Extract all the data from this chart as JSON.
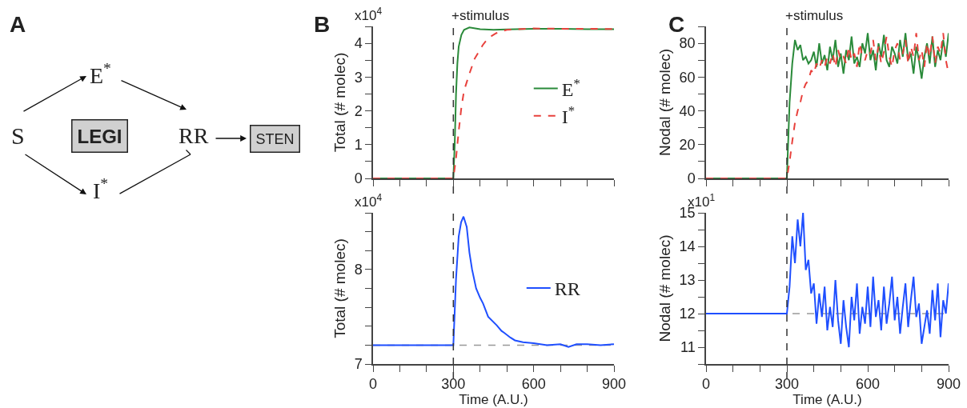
{
  "chart_data": [
    {
      "type": "other",
      "title": "A",
      "annotations": [
        "S",
        "E$^{*}$",
        "I$^{*}$",
        "RR",
        "LEGI",
        "STEN"
      ]
    },
    {
      "type": "line",
      "title": "B",
      "ylabel": "Total (# molec)",
      "annotations": [
        "x10$^{4}$"
      ],
      "xlim": [
        0,
        900
      ],
      "xticks": [
        0,
        {
          "value": 100,
          "label": null
        },
        {
          "value": 200,
          "label": null
        },
        {
          "value": 300,
          "label": null
        },
        {
          "value": 400,
          "label": null
        },
        {
          "value": 500,
          "label": null
        },
        {
          "value": 600,
          "label": null
        },
        {
          "value": 700,
          "label": null
        },
        {
          "value": 800,
          "label": null
        },
        {
          "value": 900,
          "label": null
        }
      ],
      "ylim": [
        0,
        4.5
      ],
      "yticks": [
        0,
        {
          "value": 0.5,
          "label": null
        },
        1,
        {
          "value": 1.5,
          "label": null
        },
        2,
        {
          "value": 2.5,
          "label": null
        },
        3,
        {
          "value": 3.5,
          "label": null
        },
        4,
        {
          "value": 4.5,
          "label": null
        }
      ],
      "tick_labels": "y",
      "legend": "right",
      "ref_lines": [
        {
          "axis": "x",
          "value": 300,
          "label": "+stimulus",
          "color": "#333333",
          "line_style": "dashed"
        }
      ],
      "series": [
        {
          "name": "E$^{*}$",
          "color": "#2a8a3a",
          "line_style": "solid",
          "x": [
            0,
            300,
            305,
            310,
            315,
            320,
            330,
            340,
            360,
            400,
            450,
            500,
            600,
            700,
            800,
            900
          ],
          "values": [
            0,
            0,
            1.0,
            2.5,
            3.4,
            3.9,
            4.25,
            4.4,
            4.47,
            4.42,
            4.4,
            4.41,
            4.43,
            4.43,
            4.42,
            4.42
          ]
        },
        {
          "name": "I$^{*}$",
          "color": "#e8413c",
          "line_style": "dashed",
          "x": [
            0,
            300,
            310,
            320,
            330,
            340,
            360,
            380,
            410,
            430,
            460,
            500,
            600,
            700,
            800,
            900
          ],
          "values": [
            0,
            0,
            0.6,
            1.4,
            2.1,
            2.6,
            3.1,
            3.55,
            3.95,
            4.15,
            4.3,
            4.4,
            4.44,
            4.43,
            4.43,
            4.42
          ]
        }
      ]
    },
    {
      "type": "line",
      "xlabel": "Time (A.U.)",
      "ylabel": "Total (# molec)",
      "annotations": [
        "x10$^{4}$"
      ],
      "xlim": [
        0,
        900
      ],
      "xticks": [
        0,
        {
          "value": 100,
          "label": null
        },
        {
          "value": 200,
          "label": null
        },
        300,
        {
          "value": 400,
          "label": null
        },
        {
          "value": 500,
          "label": null
        },
        600,
        {
          "value": 700,
          "label": null
        },
        {
          "value": 800,
          "label": null
        },
        900
      ],
      "ylim": [
        7,
        8.6
      ],
      "yticks": [
        7,
        {
          "value": 7.2,
          "label": null
        },
        {
          "value": 7.4,
          "label": null
        },
        {
          "value": 7.6,
          "label": null
        },
        {
          "value": 7.8,
          "label": null
        },
        8,
        {
          "value": 8.2,
          "label": null
        },
        {
          "value": 8.4,
          "label": null
        },
        {
          "value": 8.6,
          "label": null
        }
      ],
      "legend": "right",
      "ref_lines": [
        {
          "axis": "x",
          "value": 300,
          "color": "#333333",
          "line_style": "dashed"
        },
        {
          "axis": "y",
          "value": 7.2,
          "color": "#999999",
          "line_style": "dashed"
        }
      ],
      "series": [
        {
          "name": "RR",
          "color": "#1f4fff",
          "line_style": "solid",
          "x": [
            0,
            300,
            310,
            320,
            329,
            338,
            350,
            360,
            370,
            385,
            400,
            411,
            430,
            462,
            480,
            490,
            513,
            530,
            560,
            600,
            650,
            700,
            730,
            760,
            800,
            850,
            900
          ],
          "values": [
            7.2,
            7.2,
            7.9,
            8.35,
            8.5,
            8.56,
            8.45,
            8.18,
            8.0,
            7.8,
            7.7,
            7.64,
            7.5,
            7.41,
            7.35,
            7.33,
            7.28,
            7.25,
            7.23,
            7.22,
            7.2,
            7.21,
            7.18,
            7.21,
            7.21,
            7.2,
            7.21
          ]
        }
      ]
    },
    {
      "type": "line",
      "title": "C",
      "ylabel": "Nodal (# molec)",
      "xlim": [
        0,
        900
      ],
      "xticks": [
        0,
        {
          "value": 100,
          "label": null
        },
        {
          "value": 200,
          "label": null
        },
        {
          "value": 300,
          "label": null
        },
        {
          "value": 400,
          "label": null
        },
        {
          "value": 500,
          "label": null
        },
        {
          "value": 600,
          "label": null
        },
        {
          "value": 700,
          "label": null
        },
        {
          "value": 800,
          "label": null
        },
        {
          "value": 900,
          "label": null
        }
      ],
      "ylim": [
        0,
        90
      ],
      "yticks": [
        0,
        {
          "value": 10,
          "label": null
        },
        20,
        {
          "value": 30,
          "label": null
        },
        40,
        {
          "value": 50,
          "label": null
        },
        60,
        {
          "value": 70,
          "label": null
        },
        80,
        {
          "value": 90,
          "label": null
        }
      ],
      "tick_labels": "y",
      "ref_lines": [
        {
          "axis": "x",
          "value": 300,
          "label": "+stimulus",
          "color": "#333333",
          "line_style": "dashed"
        }
      ],
      "x": [
        0,
        300,
        310,
        320,
        330,
        340,
        350,
        360,
        370,
        380,
        390,
        400,
        410,
        420,
        430,
        440,
        450,
        460,
        470,
        480,
        490,
        500,
        510,
        520,
        530,
        540,
        550,
        560,
        570,
        580,
        590,
        600,
        610,
        620,
        630,
        640,
        650,
        660,
        670,
        680,
        690,
        700,
        710,
        720,
        730,
        740,
        750,
        760,
        770,
        780,
        790,
        800,
        810,
        820,
        830,
        840,
        850,
        860,
        870,
        880,
        890,
        900
      ],
      "series": [
        {
          "color": "#2a8a3a",
          "line_style": "solid",
          "values": [
            0,
            0,
            45,
            68,
            82,
            76,
            79,
            70,
            72,
            68,
            70,
            75,
            66,
            80,
            68,
            73,
            64,
            78,
            70,
            82,
            66,
            74,
            62,
            76,
            70,
            84,
            68,
            72,
            66,
            80,
            74,
            86,
            70,
            76,
            64,
            80,
            72,
            85,
            70,
            66,
            78,
            74,
            68,
            82,
            72,
            86,
            70,
            74,
            62,
            78,
            70,
            59,
            72,
            80,
            68,
            84,
            66,
            76,
            70,
            82,
            72,
            86
          ]
        },
        {
          "color": "#e8413c",
          "line_style": "dashed",
          "values": [
            0,
            0,
            10,
            22,
            33,
            40,
            45,
            52,
            56,
            58,
            64,
            62,
            68,
            65,
            70,
            66,
            72,
            68,
            74,
            66,
            76,
            70,
            72,
            68,
            78,
            70,
            74,
            66,
            80,
            72,
            70,
            76,
            74,
            82,
            70,
            78,
            68,
            75,
            84,
            72,
            66,
            76,
            80,
            70,
            74,
            82,
            68,
            78,
            72,
            86,
            70,
            76,
            66,
            80,
            72,
            84,
            68,
            78,
            74,
            86,
            70,
            62
          ]
        }
      ]
    },
    {
      "type": "line",
      "xlabel": "Time (A.U.)",
      "ylabel": "Nodal (# molec)",
      "annotations": [
        "x10$^{1}$"
      ],
      "xlim": [
        0,
        900
      ],
      "xticks": [
        0,
        {
          "value": 100,
          "label": null
        },
        {
          "value": 200,
          "label": null
        },
        300,
        {
          "value": 400,
          "label": null
        },
        {
          "value": 500,
          "label": null
        },
        600,
        {
          "value": 700,
          "label": null
        },
        {
          "value": 800,
          "label": null
        },
        900
      ],
      "ylim": [
        10.5,
        15
      ],
      "yticks": [
        {
          "value": 10.5,
          "label": null
        },
        11,
        {
          "value": 11.5,
          "label": null
        },
        12,
        {
          "value": 12.5,
          "label": null
        },
        13,
        {
          "value": 13.5,
          "label": null
        },
        14,
        {
          "value": 14.5,
          "label": null
        },
        15
      ],
      "ref_lines": [
        {
          "axis": "x",
          "value": 300,
          "color": "#333333",
          "line_style": "dashed"
        },
        {
          "axis": "y",
          "value": 12,
          "color": "#999999",
          "line_style": "dashed"
        }
      ],
      "x": [
        0,
        300,
        310,
        320,
        330,
        340,
        350,
        360,
        370,
        380,
        390,
        400,
        410,
        420,
        430,
        440,
        450,
        460,
        470,
        480,
        490,
        500,
        510,
        520,
        530,
        540,
        550,
        560,
        570,
        580,
        590,
        600,
        610,
        620,
        630,
        640,
        650,
        660,
        670,
        680,
        690,
        700,
        710,
        720,
        730,
        740,
        750,
        760,
        770,
        780,
        790,
        800,
        810,
        820,
        830,
        840,
        850,
        860,
        870,
        880,
        890,
        900
      ],
      "series": [
        {
          "color": "#1f4fff",
          "line_style": "solid",
          "values": [
            12,
            12,
            12.8,
            14.3,
            13.5,
            14.8,
            14.0,
            15.0,
            13.3,
            13.6,
            12.6,
            12.9,
            11.7,
            12.6,
            11.9,
            12.8,
            11.5,
            12.2,
            11.6,
            13.0,
            11.8,
            11.1,
            12.4,
            11.6,
            11.0,
            12.5,
            11.8,
            12.9,
            11.4,
            12.2,
            11.7,
            12.8,
            11.6,
            13.1,
            11.9,
            12.4,
            11.5,
            12.8,
            11.7,
            12.3,
            13.1,
            11.8,
            12.5,
            11.4,
            12.2,
            12.9,
            11.6,
            12.4,
            13.1,
            11.9,
            12.3,
            11.1,
            11.6,
            12.1,
            11.4,
            12.7,
            11.8,
            12.9,
            11.3,
            12.4,
            12.0,
            12.9
          ]
        }
      ]
    }
  ]
}
